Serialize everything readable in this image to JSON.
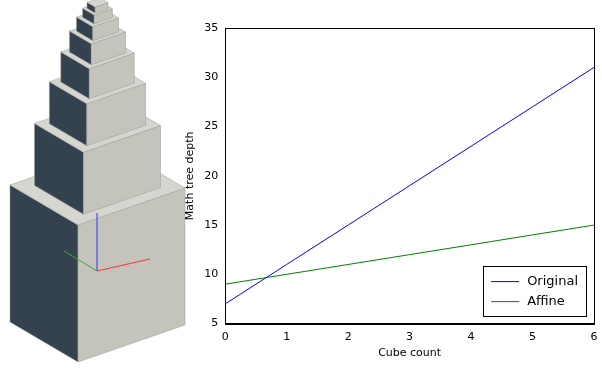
{
  "chart_data": {
    "type": "line",
    "x": [
      0,
      1,
      2,
      3,
      4,
      5,
      6
    ],
    "series": [
      {
        "name": "Original",
        "color": "#0000ff",
        "values": [
          7,
          11,
          15,
          19,
          23,
          27,
          31
        ]
      },
      {
        "name": "Affine",
        "color": "#008000",
        "values": [
          9,
          10,
          11,
          12,
          13,
          14,
          15
        ]
      }
    ],
    "x_label": "Cube count",
    "y_label": "Math tree depth",
    "xlim": [
      0,
      6
    ],
    "xticks": [
      0,
      1,
      2,
      3,
      4,
      5,
      6
    ],
    "ylim": [
      5,
      35
    ],
    "yticks": [
      5,
      10,
      15,
      20,
      25,
      30,
      35
    ],
    "legend": "lower right",
    "grid": false
  }
}
